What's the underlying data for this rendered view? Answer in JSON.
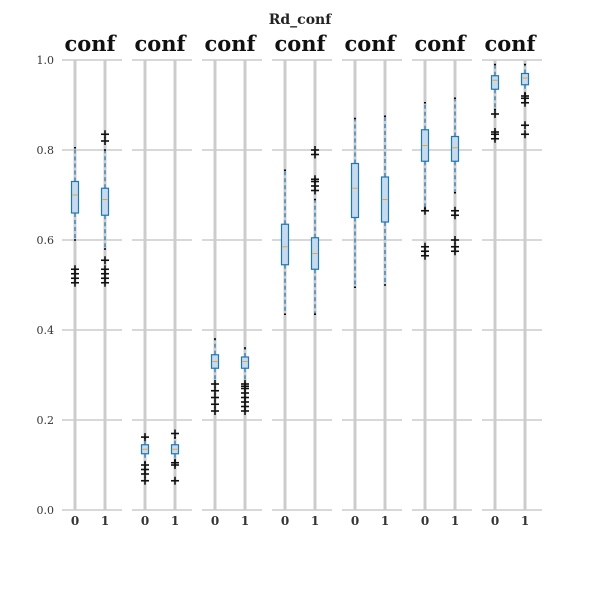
{
  "chart_data": {
    "type": "box",
    "title": "Rd_conf",
    "panel_titles": [
      "conf",
      "conf",
      "conf",
      "conf",
      "conf",
      "conf",
      "conf"
    ],
    "categories": [
      "0",
      "1"
    ],
    "ylim": [
      0.0,
      1.0
    ],
    "yticks": [
      0.0,
      0.2,
      0.4,
      0.6,
      0.8,
      1.0
    ],
    "ytick_labels": [
      "0.0",
      "0.2",
      "0.4",
      "0.6",
      "0.8",
      "1.0"
    ],
    "grid": true,
    "colors": {
      "box": "#1f77b4",
      "box_fill": "#c6dbef",
      "median": "#e8a33a",
      "gridline": "#cccccc",
      "flier": "#111111"
    },
    "panels": [
      {
        "boxes": [
          {
            "category": "0",
            "whislo": 0.6,
            "q1": 0.66,
            "med": 0.7,
            "q3": 0.73,
            "whishi": 0.805,
            "fliers": [
              0.505,
              0.515,
              0.525,
              0.535
            ]
          },
          {
            "category": "1",
            "whislo": 0.58,
            "q1": 0.655,
            "med": 0.69,
            "q3": 0.715,
            "whishi": 0.8,
            "fliers": [
              0.505,
              0.515,
              0.525,
              0.535,
              0.555,
              0.82,
              0.835
            ]
          }
        ]
      },
      {
        "boxes": [
          {
            "category": "0",
            "whislo": 0.105,
            "q1": 0.125,
            "med": 0.135,
            "q3": 0.145,
            "whishi": 0.16,
            "fliers": [
              0.065,
              0.08,
              0.09,
              0.1,
              0.162
            ]
          },
          {
            "category": "1",
            "whislo": 0.11,
            "q1": 0.125,
            "med": 0.135,
            "q3": 0.145,
            "whishi": 0.16,
            "fliers": [
              0.065,
              0.1,
              0.105,
              0.17
            ]
          }
        ]
      },
      {
        "boxes": [
          {
            "category": "0",
            "whislo": 0.28,
            "q1": 0.315,
            "med": 0.33,
            "q3": 0.345,
            "whishi": 0.38,
            "fliers": [
              0.22,
              0.235,
              0.25,
              0.265,
              0.28
            ]
          },
          {
            "category": "1",
            "whislo": 0.28,
            "q1": 0.315,
            "med": 0.33,
            "q3": 0.34,
            "whishi": 0.36,
            "fliers": [
              0.22,
              0.23,
              0.24,
              0.25,
              0.26,
              0.27,
              0.275,
              0.28
            ]
          }
        ]
      },
      {
        "boxes": [
          {
            "category": "0",
            "whislo": 0.435,
            "q1": 0.545,
            "med": 0.585,
            "q3": 0.635,
            "whishi": 0.755,
            "fliers": []
          },
          {
            "category": "1",
            "whislo": 0.435,
            "q1": 0.535,
            "med": 0.57,
            "q3": 0.605,
            "whishi": 0.69,
            "fliers": [
              0.71,
              0.72,
              0.73,
              0.735,
              0.79,
              0.8
            ]
          }
        ]
      },
      {
        "boxes": [
          {
            "category": "0",
            "whislo": 0.495,
            "q1": 0.65,
            "med": 0.715,
            "q3": 0.77,
            "whishi": 0.87,
            "fliers": []
          },
          {
            "category": "1",
            "whislo": 0.5,
            "q1": 0.64,
            "med": 0.69,
            "q3": 0.74,
            "whishi": 0.875,
            "fliers": []
          }
        ]
      },
      {
        "boxes": [
          {
            "category": "0",
            "whislo": 0.67,
            "q1": 0.775,
            "med": 0.81,
            "q3": 0.845,
            "whishi": 0.905,
            "fliers": [
              0.565,
              0.575,
              0.585,
              0.665
            ]
          },
          {
            "category": "1",
            "whislo": 0.705,
            "q1": 0.775,
            "med": 0.805,
            "q3": 0.83,
            "whishi": 0.915,
            "fliers": [
              0.575,
              0.585,
              0.6,
              0.655,
              0.665
            ]
          }
        ]
      },
      {
        "boxes": [
          {
            "category": "0",
            "whislo": 0.89,
            "q1": 0.935,
            "med": 0.955,
            "q3": 0.965,
            "whishi": 0.99,
            "fliers": [
              0.825,
              0.835,
              0.84,
              0.88
            ]
          },
          {
            "category": "1",
            "whislo": 0.925,
            "q1": 0.945,
            "med": 0.96,
            "q3": 0.97,
            "whishi": 0.99,
            "fliers": [
              0.835,
              0.855,
              0.905,
              0.915,
              0.92
            ]
          }
        ]
      }
    ]
  }
}
